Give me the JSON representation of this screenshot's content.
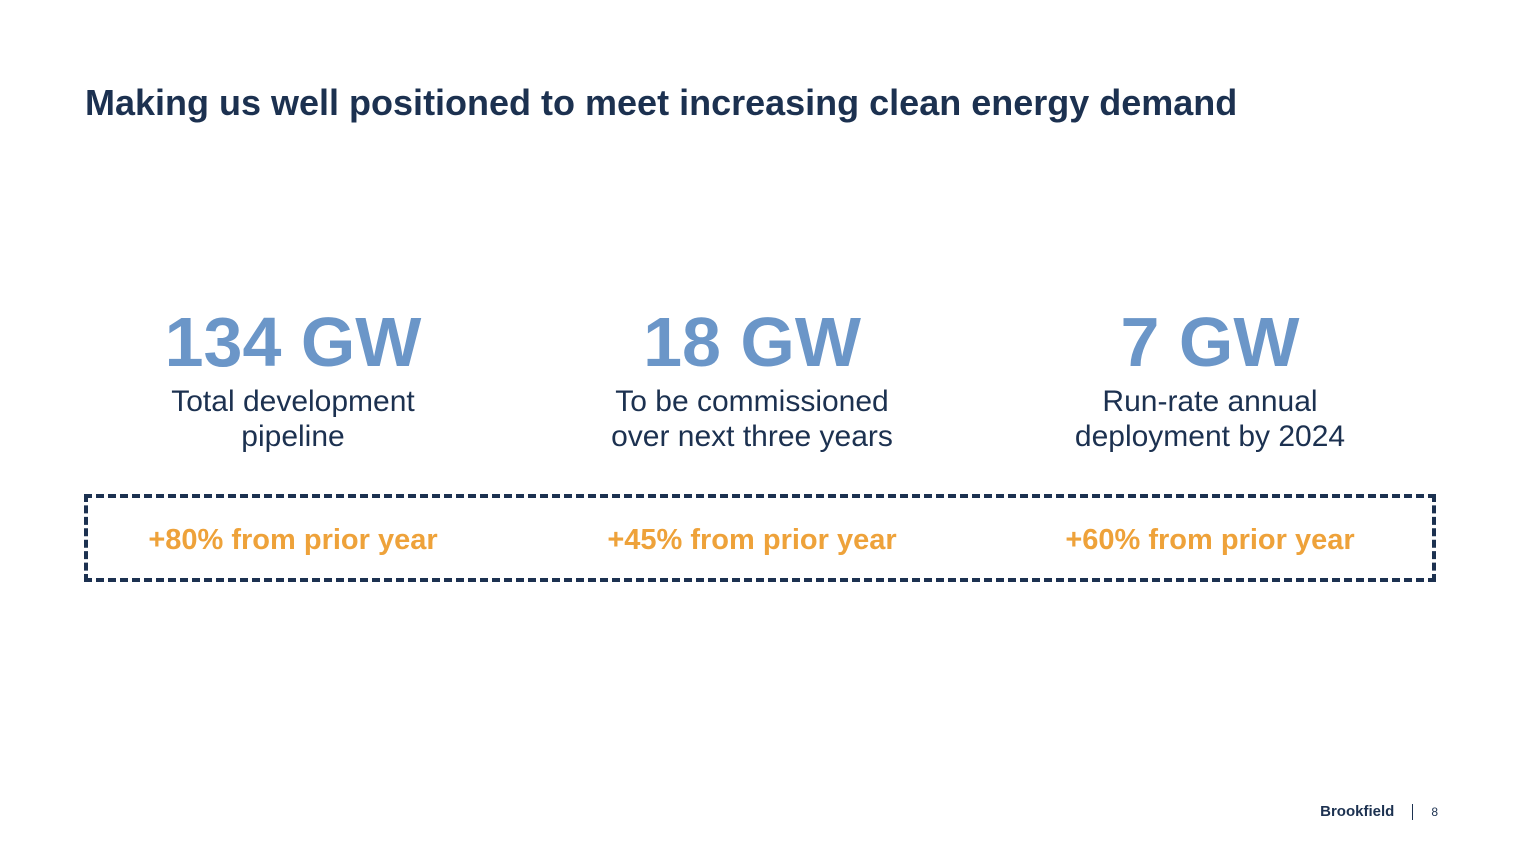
{
  "slide": {
    "title": "Making us well positioned to meet increasing clean energy demand"
  },
  "metrics": [
    {
      "value": "134 GW",
      "desc_line1": "Total development",
      "desc_line2": "pipeline",
      "growth": "+80% from prior year"
    },
    {
      "value": "18 GW",
      "desc_line1": "To be commissioned",
      "desc_line2": "over next three years",
      "growth": "+45% from prior year"
    },
    {
      "value": "7 GW",
      "desc_line1": "Run-rate annual",
      "desc_line2": "deployment by 2024",
      "growth": "+60% from prior year"
    }
  ],
  "colors": {
    "title": "#1c3150",
    "metric_value": "#6b96c8",
    "growth": "#eea23a",
    "box_border": "#1c3150"
  },
  "footer": {
    "brand": "Brookfield",
    "page_number": "8"
  }
}
